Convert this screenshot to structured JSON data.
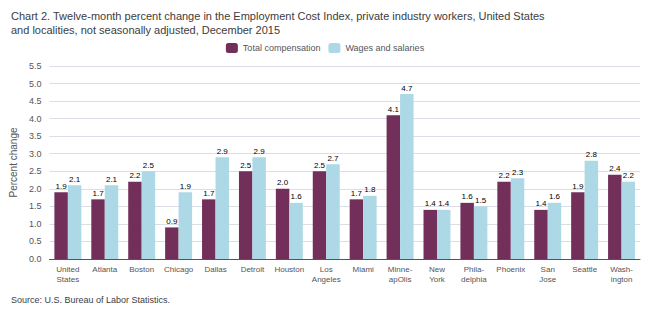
{
  "chart_data": {
    "type": "bar",
    "title": "Chart 2. Twelve-month percent change in the Employment Cost Index, private industry workers, United States\nand localities, not seasonally adjusted, December 2015",
    "ylabel": "Percent change",
    "source": "Source: U.S. Bureau of Labor Statistics.",
    "categories": [
      "United\nStates",
      "Atlanta",
      "Boston",
      "Chicago",
      "Dallas",
      "Detroit",
      "Houston",
      "Los\nAngeles",
      "Miami",
      "Minne-\napOlis",
      "New\nYork",
      "Phila-\ndelphia",
      "Phoenix",
      "San\nJose",
      "Seattle",
      "Wash-\nington"
    ],
    "series": [
      {
        "name": "Total compensation",
        "color": "#722F5A",
        "values": [
          1.9,
          1.7,
          2.2,
          0.9,
          1.7,
          2.5,
          2.0,
          2.5,
          1.7,
          4.1,
          1.4,
          1.6,
          2.2,
          1.4,
          1.9,
          2.4
        ],
        "value_labels": [
          "1.9",
          "1.7",
          "2.2",
          "0.9",
          "1.7",
          "2.5",
          "2.0",
          "2.5",
          "1.7",
          "4.1",
          "1.4",
          "1.6",
          "2.2",
          "1.4",
          "1.9",
          "2.4"
        ]
      },
      {
        "name": "Wages and salaries",
        "color": "#ADD8E6",
        "values": [
          2.1,
          2.1,
          2.5,
          1.9,
          2.9,
          2.9,
          1.6,
          2.7,
          1.8,
          4.7,
          1.4,
          1.5,
          2.3,
          1.6,
          2.8,
          2.2
        ],
        "value_labels": [
          "2.1",
          "2.1",
          "2.5",
          "1.9",
          "2.9",
          "2.9",
          "1.6",
          "2.7",
          "1.8",
          "4.7",
          "1.4",
          "1.5",
          "2.3",
          "1.6",
          "2.8",
          "2.2"
        ]
      }
    ],
    "ylim": [
      0,
      5.5
    ],
    "yticks": [
      {
        "value": 0,
        "label": "0.0"
      },
      0.5,
      {
        "value": 1,
        "label": "1.0"
      },
      1.5,
      {
        "value": 2,
        "label": "2.0"
      },
      2.5,
      {
        "value": 3,
        "label": "3.0"
      },
      3.5,
      {
        "value": 4,
        "label": "4.0"
      },
      4.5,
      {
        "value": 5,
        "label": "5.0"
      },
      5.5
    ],
    "grid": true,
    "legend": "top",
    "data_labels": true
  }
}
